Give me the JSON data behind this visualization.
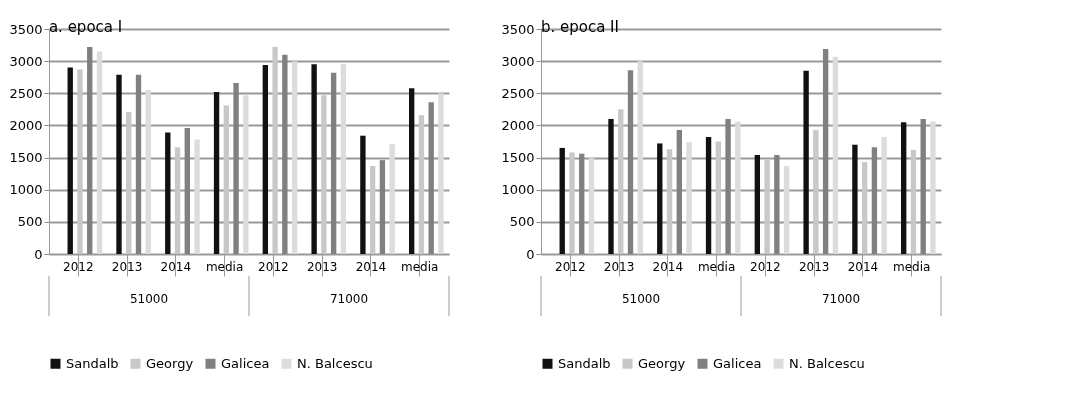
{
  "chart_data": [
    {
      "type": "bar",
      "title": "a. epoca I",
      "categories": [
        "2012",
        "2013",
        "2014",
        "media",
        "2012",
        "2013",
        "2014",
        "media"
      ],
      "annotations": [
        "51000",
        "71000"
      ],
      "series": [
        {
          "name": "Sandalb",
          "color": "#111111",
          "values": [
            2900,
            2790,
            1890,
            2520,
            2940,
            2950,
            1840,
            2580
          ]
        },
        {
          "name": "Georgy",
          "color": "#c8c8c8",
          "values": [
            2870,
            2210,
            1660,
            2310,
            3220,
            2470,
            1370,
            2160
          ]
        },
        {
          "name": "Galicea",
          "color": "#808080",
          "values": [
            3220,
            2790,
            1960,
            2660,
            3100,
            2820,
            1460,
            2360
          ]
        },
        {
          "name": "N. Balcescu",
          "color": "#dcdcdc",
          "values": [
            3150,
            2550,
            1780,
            2470,
            3000,
            2950,
            1710,
            2500
          ]
        }
      ],
      "ylim": [
        0,
        3500
      ],
      "yticks": [
        0,
        500,
        1000,
        1500,
        2000,
        2500,
        3000,
        3500
      ],
      "grid": "y",
      "legend": "bottom"
    },
    {
      "type": "bar",
      "title": "b. epoca II",
      "categories": [
        "2012",
        "2013",
        "2014",
        "media",
        "2012",
        "2013",
        "2014",
        "media"
      ],
      "annotations": [
        "51000",
        "71000"
      ],
      "series": [
        {
          "name": "Sandalb",
          "color": "#111111",
          "values": [
            1650,
            2100,
            1720,
            1820,
            1540,
            2850,
            1700,
            2050
          ]
        },
        {
          "name": "Georgy",
          "color": "#c8c8c8",
          "values": [
            1580,
            2250,
            1630,
            1750,
            1470,
            1930,
            1430,
            1620
          ]
        },
        {
          "name": "Galicea",
          "color": "#808080",
          "values": [
            1560,
            2860,
            1930,
            2100,
            1540,
            3190,
            1660,
            2100
          ]
        },
        {
          "name": "N. Balcescu",
          "color": "#dcdcdc",
          "values": [
            1490,
            3000,
            1740,
            2060,
            1370,
            3070,
            1820,
            2060
          ]
        }
      ],
      "ylim": [
        0,
        3500
      ],
      "yticks": [
        0,
        500,
        1000,
        1500,
        2000,
        2500,
        3000,
        3500
      ],
      "grid": "y",
      "legend": "bottom"
    }
  ]
}
